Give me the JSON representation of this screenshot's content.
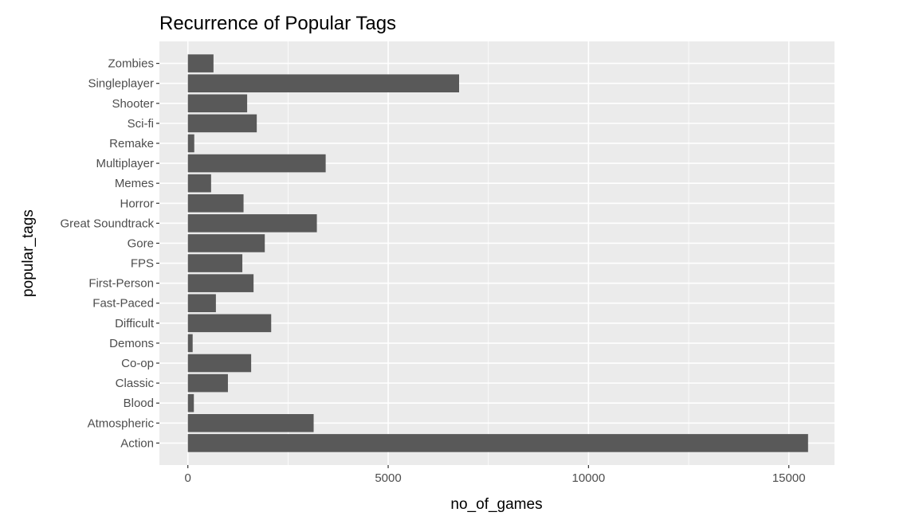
{
  "chart_data": {
    "type": "bar",
    "orientation": "horizontal",
    "title": "Recurrence of Popular Tags",
    "xlabel": "no_of_games",
    "ylabel": "popular_tags",
    "categories": [
      "Action",
      "Atmospheric",
      "Blood",
      "Classic",
      "Co-op",
      "Demons",
      "Difficult",
      "Fast-Paced",
      "First-Person",
      "FPS",
      "Gore",
      "Great Soundtrack",
      "Horror",
      "Memes",
      "Multiplayer",
      "Remake",
      "Sci-fi",
      "Shooter",
      "Singleplayer",
      "Zombies"
    ],
    "values": [
      15480,
      3140,
      150,
      1000,
      1580,
      120,
      2080,
      700,
      1640,
      1360,
      1920,
      3220,
      1390,
      580,
      3440,
      160,
      1720,
      1480,
      6770,
      640
    ],
    "xlim": [
      -710,
      16140
    ],
    "xticks": [
      0,
      5000,
      10000,
      15000
    ],
    "xtick_labels": [
      "0",
      "5000",
      "10000",
      "15000"
    ],
    "grid": true,
    "bar_color": "#595959",
    "panel_color": "#ebebeb",
    "gridline_color": "#ffffff"
  }
}
